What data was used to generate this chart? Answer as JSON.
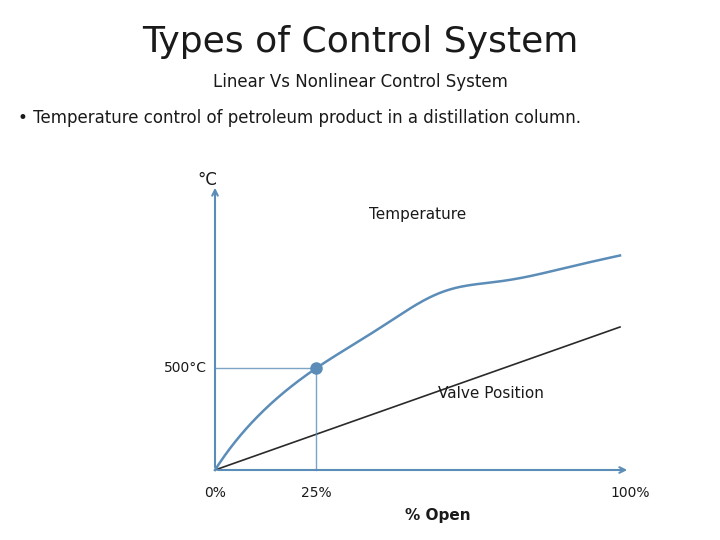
{
  "title": "Types of Control System",
  "subtitle": "Linear Vs Nonlinear Control System",
  "bullet": "• Temperature control of petroleum product in a distillation column.",
  "background_color": "#ffffff",
  "title_fontsize": 26,
  "subtitle_fontsize": 12,
  "bullet_fontsize": 12,
  "curve_color": "#5b8db8",
  "line_color": "#2a2a2a",
  "axis_color": "#5b8db8",
  "dot_color": "#5b8db8",
  "label_temperature": "Temperature",
  "label_valve": "Valve Position",
  "label_yaxis": "°C",
  "label_500": "500°C",
  "label_0": "0%",
  "label_25": "25%",
  "label_100": "100%",
  "label_xaxis": "% Open"
}
